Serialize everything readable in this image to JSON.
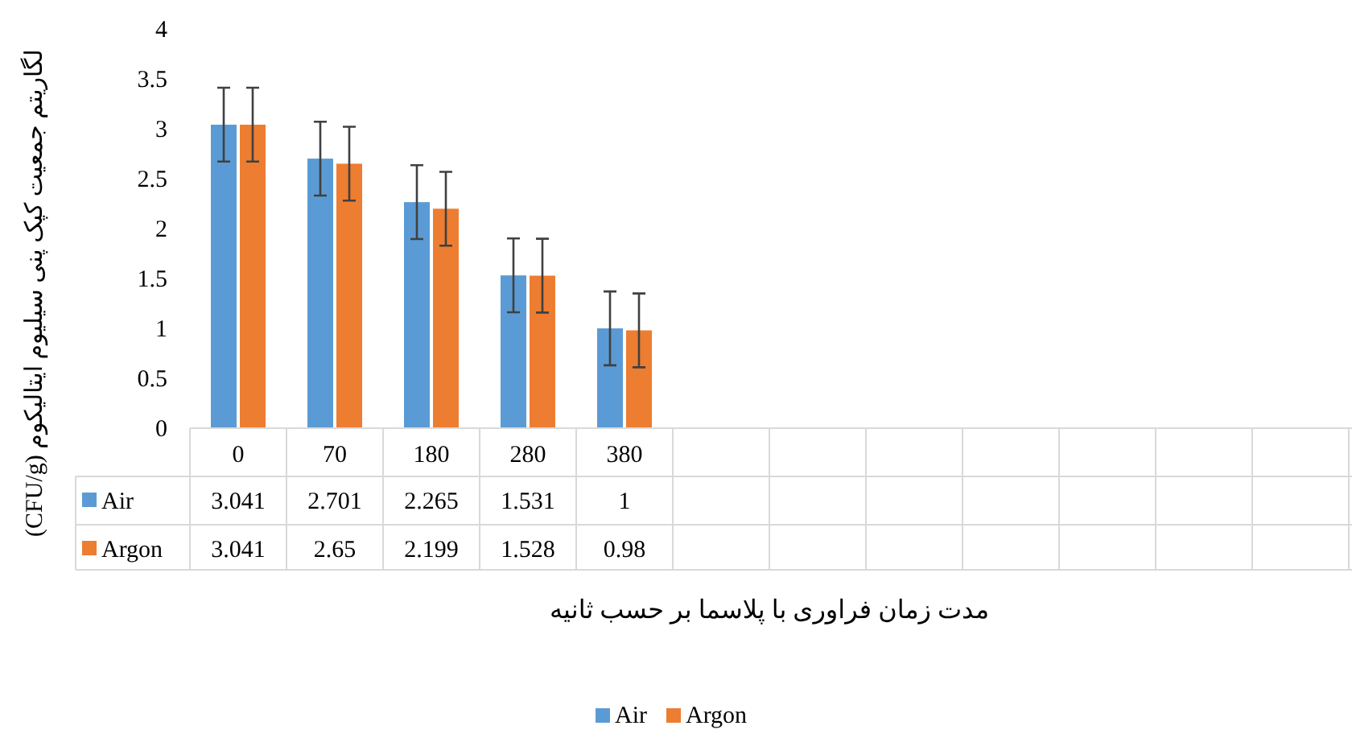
{
  "chart_data": {
    "type": "bar",
    "xlabel": "مدت زمان فراوری با پلاسما بر حسب ثانیه",
    "ylabel": "لگاریتم جمعیت کپک پنی سیلیوم ایتالیکوم (CFU/g)",
    "categories": [
      "0",
      "70",
      "180",
      "280",
      "380",
      null,
      null,
      null,
      null,
      null,
      null,
      null
    ],
    "series": [
      {
        "name": "Air",
        "color": "#5b9bd5",
        "values": [
          3.041,
          2.701,
          2.265,
          1.531,
          1,
          null,
          null,
          null,
          null,
          null,
          null,
          null
        ],
        "errors": [
          0.37,
          0.37,
          0.37,
          0.37,
          0.37,
          null,
          null,
          null,
          null,
          null,
          null,
          null
        ]
      },
      {
        "name": "Argon",
        "color": "#ed7d31",
        "values": [
          3.041,
          2.65,
          2.199,
          1.528,
          0.98,
          null,
          null,
          null,
          null,
          null,
          null,
          null
        ],
        "errors": [
          0.37,
          0.37,
          0.37,
          0.37,
          0.37,
          null,
          null,
          null,
          null,
          null,
          null,
          null
        ]
      }
    ],
    "ylim": [
      0,
      4
    ],
    "yticks": [
      0,
      0.5,
      1,
      1.5,
      2,
      2.5,
      3,
      3.5,
      4
    ],
    "data_labels": true,
    "legend": "bottom"
  }
}
